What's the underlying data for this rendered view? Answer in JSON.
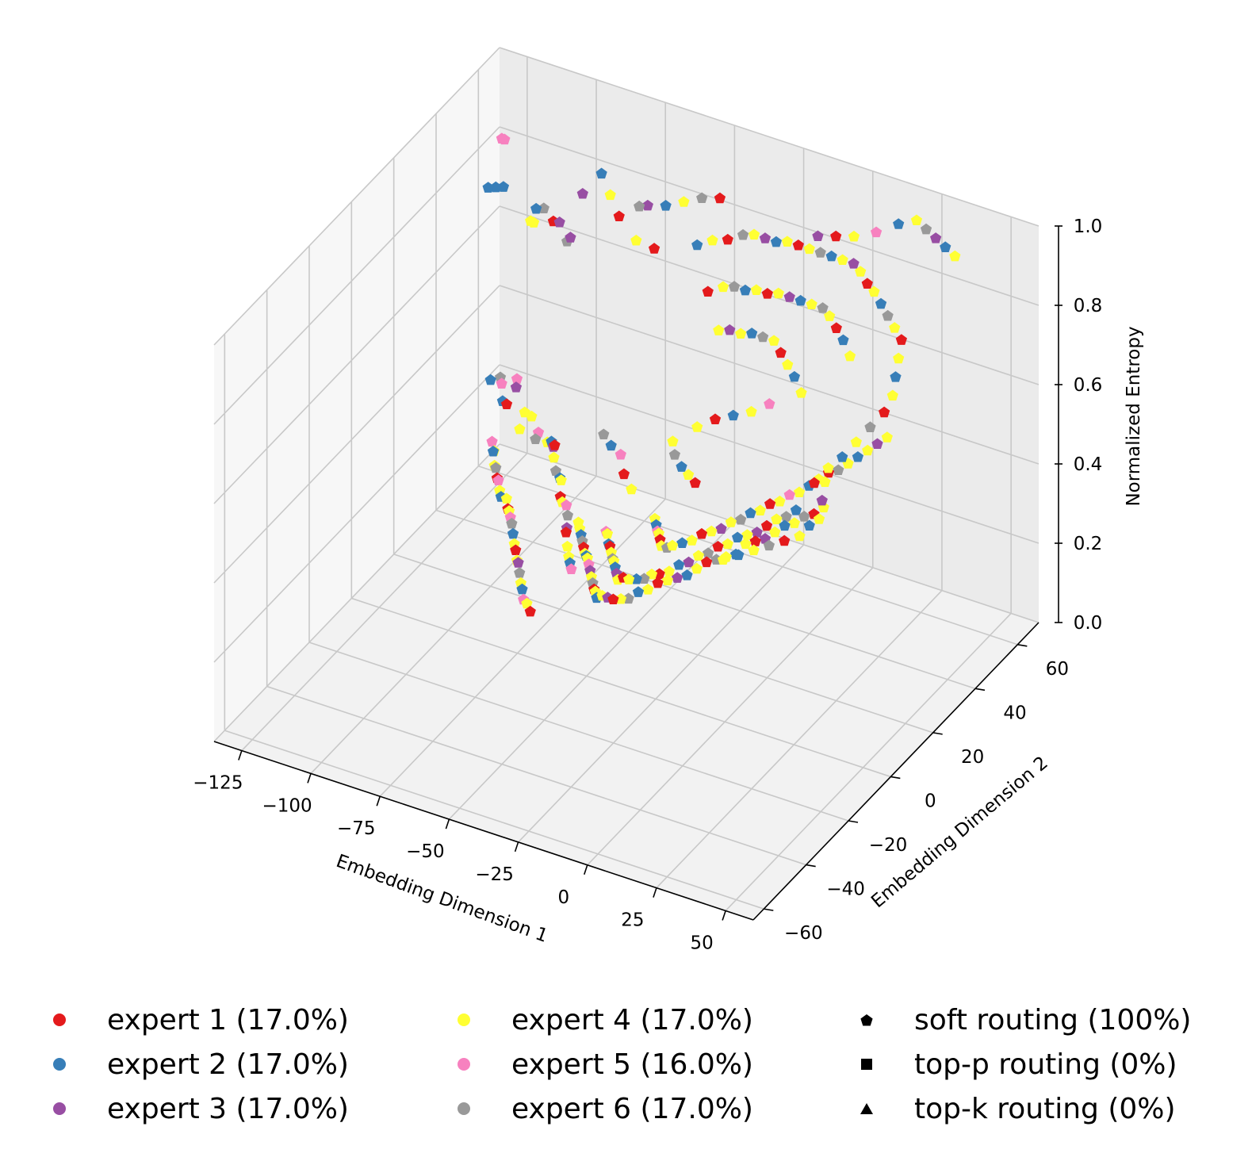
{
  "chart_data": {
    "type": "scatter",
    "projection": "3d",
    "xlabel": "Embedding Dimension 1",
    "ylabel": "Embedding Dimension 2",
    "zlabel": "Normalized Entropy",
    "xlim": [
      -135,
      60
    ],
    "ylim": [
      -65,
      70
    ],
    "zlim": [
      0,
      1
    ],
    "xticks": [
      "−125",
      "−100",
      "−75",
      "−50",
      "−25",
      "0",
      "25",
      "50"
    ],
    "yticks": [
      "−60",
      "−40",
      "−20",
      "0",
      "20",
      "40",
      "60"
    ],
    "zticks": [
      "0.0",
      "0.2",
      "0.4",
      "0.6",
      "0.8",
      "1.0"
    ],
    "grid": true,
    "legend_position": "bottom",
    "series": [
      {
        "name": "expert 1 (17.0%)",
        "color": "#e41a1c"
      },
      {
        "name": "expert 2 (17.0%)",
        "color": "#377eb8"
      },
      {
        "name": "expert 3 (17.0%)",
        "color": "#984ea3"
      },
      {
        "name": "expert 4 (17.0%)",
        "color": "#ffff33"
      },
      {
        "name": "expert 5 (16.0%)",
        "color": "#f781bf"
      },
      {
        "name": "expert 6 (17.0%)",
        "color": "#999999"
      }
    ],
    "marker_legend": [
      {
        "name": "soft routing (100%)",
        "marker": "pentagon"
      },
      {
        "name": "top-p routing (0%)",
        "marker": "square"
      },
      {
        "name": "top-k routing (0%)",
        "marker": "triangle"
      }
    ],
    "points": [
      [
        -115,
        60,
        0.66,
        3
      ],
      [
        -110,
        52,
        0.72,
        3
      ],
      [
        -120,
        45,
        0.82,
        1
      ],
      [
        -118,
        46,
        0.82,
        1
      ],
      [
        -116,
        47,
        0.82,
        1
      ],
      [
        -125,
        58,
        0.86,
        4
      ],
      [
        -124,
        58,
        0.86,
        4
      ],
      [
        -95,
        35,
        0.88,
        1
      ],
      [
        -93,
        36,
        0.88,
        5
      ],
      [
        -88,
        34,
        0.87,
        0
      ],
      [
        -85,
        33,
        0.88,
        2
      ],
      [
        -80,
        30,
        0.86,
        5
      ],
      [
        -78,
        29,
        0.88,
        2
      ],
      [
        -82,
        40,
        0.92,
        2
      ],
      [
        -79,
        45,
        0.95,
        1
      ],
      [
        -72,
        40,
        0.94,
        3
      ],
      [
        -65,
        35,
        0.93,
        0
      ],
      [
        -55,
        30,
        0.92,
        3
      ],
      [
        -60,
        38,
        0.95,
        5
      ],
      [
        -50,
        32,
        0.9,
        0
      ],
      [
        -100,
        20,
        0.52,
        1
      ],
      [
        -98,
        22,
        0.52,
        5
      ],
      [
        -96,
        20,
        0.52,
        4
      ],
      [
        -92,
        22,
        0.53,
        4
      ],
      [
        -90,
        19,
        0.53,
        2
      ],
      [
        -88,
        10,
        0.55,
        1
      ],
      [
        -85,
        8,
        0.56,
        0
      ],
      [
        -80,
        10,
        0.54,
        3
      ],
      [
        -78,
        5,
        0.53,
        3
      ],
      [
        -76,
        8,
        0.55,
        3
      ],
      [
        -72,
        6,
        0.53,
        4
      ],
      [
        -70,
        2,
        0.54,
        5
      ],
      [
        -68,
        5,
        0.52,
        3
      ],
      [
        -65,
        3,
        0.54,
        1
      ],
      [
        -62,
        0,
        0.55,
        2
      ],
      [
        -60,
        -2,
        0.57,
        0
      ],
      [
        -58,
        -5,
        0.56,
        3
      ],
      [
        -55,
        -8,
        0.55,
        5
      ],
      [
        -52,
        -10,
        0.55,
        1
      ],
      [
        -50,
        -12,
        0.56,
        3
      ],
      [
        -48,
        -15,
        0.54,
        0
      ],
      [
        -45,
        -18,
        0.55,
        3
      ],
      [
        -42,
        -20,
        0.56,
        4
      ],
      [
        -40,
        -22,
        0.55,
        5
      ],
      [
        -38,
        -25,
        0.54,
        2
      ],
      [
        -36,
        -28,
        0.55,
        0
      ],
      [
        -34,
        -30,
        0.53,
        3
      ],
      [
        -32,
        -32,
        0.52,
        3
      ],
      [
        -30,
        -34,
        0.52,
        1
      ],
      [
        -28,
        -36,
        0.52,
        4
      ],
      [
        -75,
        -12,
        0.6,
        4
      ],
      [
        -72,
        -15,
        0.6,
        3
      ],
      [
        -70,
        -18,
        0.62,
        1
      ],
      [
        -68,
        -20,
        0.6,
        3
      ],
      [
        -66,
        -22,
        0.61,
        5
      ],
      [
        -64,
        -24,
        0.6,
        0
      ],
      [
        -62,
        -26,
        0.61,
        4
      ],
      [
        -60,
        -28,
        0.6,
        3
      ],
      [
        -58,
        -30,
        0.6,
        1
      ],
      [
        -56,
        -30,
        0.6,
        3
      ],
      [
        -54,
        -32,
        0.59,
        0
      ],
      [
        -52,
        -34,
        0.6,
        3
      ],
      [
        -50,
        -36,
        0.6,
        4
      ],
      [
        -48,
        -38,
        0.6,
        5
      ],
      [
        -46,
        -40,
        0.59,
        1
      ],
      [
        -44,
        -42,
        0.58,
        3
      ],
      [
        -42,
        -44,
        0.58,
        0
      ],
      [
        -40,
        -46,
        0.57,
        3
      ],
      [
        -38,
        -48,
        0.58,
        2
      ],
      [
        -36,
        -50,
        0.57,
        5
      ],
      [
        -34,
        -52,
        0.56,
        3
      ],
      [
        -32,
        -54,
        0.56,
        1
      ],
      [
        -30,
        -56,
        0.55,
        4
      ],
      [
        -28,
        -57,
        0.55,
        3
      ],
      [
        -26,
        -58,
        0.54,
        0
      ],
      [
        -30,
        -30,
        0.6,
        3
      ],
      [
        -28,
        -32,
        0.6,
        3
      ],
      [
        -26,
        -34,
        0.6,
        1
      ],
      [
        -24,
        -36,
        0.6,
        5
      ],
      [
        -22,
        -38,
        0.6,
        0
      ],
      [
        -20,
        -40,
        0.6,
        3
      ],
      [
        -18,
        -42,
        0.61,
        1
      ],
      [
        -16,
        -44,
        0.62,
        3
      ],
      [
        -14,
        -46,
        0.62,
        4
      ],
      [
        -12,
        -48,
        0.62,
        2
      ],
      [
        -10,
        -50,
        0.62,
        3
      ],
      [
        -8,
        -52,
        0.62,
        5
      ],
      [
        -6,
        -54,
        0.62,
        0
      ],
      [
        -4,
        -56,
        0.63,
        3
      ],
      [
        -2,
        -58,
        0.63,
        1
      ],
      [
        0,
        -58,
        0.64,
        3
      ],
      [
        2,
        -58,
        0.64,
        2
      ],
      [
        4,
        -58,
        0.64,
        0
      ],
      [
        6,
        -57,
        0.64,
        3
      ],
      [
        8,
        -56,
        0.64,
        5
      ],
      [
        10,
        -54,
        0.65,
        1
      ],
      [
        12,
        -52,
        0.65,
        3
      ],
      [
        14,
        -50,
        0.66,
        0
      ],
      [
        16,
        -48,
        0.66,
        3
      ],
      [
        18,
        -46,
        0.66,
        2
      ],
      [
        20,
        -44,
        0.66,
        1
      ],
      [
        22,
        -42,
        0.67,
        3
      ],
      [
        24,
        -40,
        0.68,
        0
      ],
      [
        26,
        -38,
        0.68,
        5
      ],
      [
        28,
        -36,
        0.68,
        3
      ],
      [
        30,
        -34,
        0.68,
        1
      ],
      [
        32,
        -32,
        0.7,
        3
      ],
      [
        34,
        -30,
        0.7,
        0
      ],
      [
        36,
        -28,
        0.7,
        2
      ],
      [
        38,
        -26,
        0.71,
        3
      ],
      [
        40,
        -24,
        0.72,
        1
      ],
      [
        42,
        -22,
        0.72,
        3
      ],
      [
        44,
        -20,
        0.73,
        5
      ],
      [
        46,
        -18,
        0.73,
        0
      ],
      [
        48,
        -16,
        0.74,
        3
      ],
      [
        -20,
        -30,
        0.6,
        4
      ],
      [
        -18,
        -32,
        0.61,
        3
      ],
      [
        -16,
        -34,
        0.6,
        1
      ],
      [
        -14,
        -36,
        0.61,
        0
      ],
      [
        -12,
        -38,
        0.61,
        3
      ],
      [
        -10,
        -40,
        0.61,
        5
      ],
      [
        -8,
        -42,
        0.62,
        3
      ],
      [
        -6,
        -44,
        0.62,
        1
      ],
      [
        -4,
        -46,
        0.62,
        2
      ],
      [
        -2,
        -48,
        0.62,
        3
      ],
      [
        0,
        -48,
        0.63,
        0
      ],
      [
        2,
        -48,
        0.63,
        3
      ],
      [
        4,
        -47,
        0.63,
        1
      ],
      [
        6,
        -46,
        0.63,
        5
      ],
      [
        8,
        -45,
        0.64,
        3
      ],
      [
        10,
        -44,
        0.64,
        0
      ],
      [
        12,
        -42,
        0.64,
        3
      ],
      [
        14,
        -40,
        0.65,
        1
      ],
      [
        16,
        -38,
        0.65,
        2
      ],
      [
        18,
        -36,
        0.66,
        3
      ],
      [
        20,
        -34,
        0.66,
        5
      ],
      [
        22,
        -32,
        0.67,
        0
      ],
      [
        24,
        -30,
        0.67,
        3
      ],
      [
        26,
        -28,
        0.68,
        1
      ],
      [
        28,
        -26,
        0.68,
        3
      ],
      [
        30,
        -24,
        0.68,
        2
      ],
      [
        32,
        -22,
        0.69,
        0
      ],
      [
        34,
        -20,
        0.7,
        3
      ],
      [
        36,
        -18,
        0.7,
        5
      ],
      [
        38,
        -16,
        0.71,
        1
      ],
      [
        -10,
        -20,
        0.6,
        3
      ],
      [
        -8,
        -22,
        0.6,
        1
      ],
      [
        -6,
        -24,
        0.6,
        4
      ],
      [
        -4,
        -26,
        0.61,
        3
      ],
      [
        -2,
        -28,
        0.61,
        0
      ],
      [
        0,
        -30,
        0.61,
        3
      ],
      [
        2,
        -30,
        0.61,
        5
      ],
      [
        4,
        -30,
        0.62,
        3
      ],
      [
        6,
        -28,
        0.62,
        1
      ],
      [
        8,
        -26,
        0.62,
        3
      ],
      [
        10,
        -24,
        0.63,
        0
      ],
      [
        12,
        -22,
        0.63,
        3
      ],
      [
        14,
        -20,
        0.63,
        2
      ],
      [
        16,
        -18,
        0.64,
        3
      ],
      [
        18,
        -16,
        0.64,
        5
      ],
      [
        20,
        -14,
        0.65,
        1
      ],
      [
        22,
        -12,
        0.65,
        3
      ],
      [
        24,
        -10,
        0.66,
        0
      ],
      [
        26,
        -8,
        0.66,
        3
      ],
      [
        28,
        -6,
        0.67,
        4
      ],
      [
        30,
        -4,
        0.67,
        3
      ],
      [
        32,
        -2,
        0.68,
        1
      ],
      [
        34,
        0,
        0.69,
        3
      ],
      [
        36,
        2,
        0.7,
        0
      ],
      [
        38,
        4,
        0.7,
        5
      ],
      [
        40,
        6,
        0.71,
        3
      ],
      [
        42,
        8,
        0.72,
        1
      ],
      [
        44,
        10,
        0.73,
        3
      ],
      [
        46,
        12,
        0.74,
        2
      ],
      [
        48,
        14,
        0.75,
        3
      ],
      [
        40,
        -10,
        0.75,
        0
      ],
      [
        42,
        -6,
        0.77,
        3
      ],
      [
        44,
        -2,
        0.78,
        1
      ],
      [
        46,
        2,
        0.8,
        3
      ],
      [
        48,
        6,
        0.82,
        5
      ],
      [
        50,
        10,
        0.84,
        0
      ],
      [
        50,
        14,
        0.86,
        3
      ],
      [
        48,
        18,
        0.88,
        1
      ],
      [
        46,
        22,
        0.9,
        3
      ],
      [
        44,
        26,
        0.92,
        0
      ],
      [
        40,
        28,
        0.93,
        3
      ],
      [
        36,
        30,
        0.94,
        5
      ],
      [
        32,
        32,
        0.95,
        1
      ],
      [
        28,
        34,
        0.96,
        3
      ],
      [
        24,
        36,
        0.96,
        0
      ],
      [
        20,
        38,
        0.97,
        3
      ],
      [
        16,
        40,
        0.97,
        2
      ],
      [
        12,
        40,
        0.97,
        3
      ],
      [
        8,
        40,
        0.97,
        1
      ],
      [
        4,
        40,
        0.97,
        5
      ],
      [
        0,
        40,
        0.97,
        3
      ],
      [
        -4,
        40,
        0.97,
        0
      ],
      [
        -8,
        40,
        0.97,
        3
      ],
      [
        -12,
        40,
        0.96,
        1
      ],
      [
        -16,
        40,
        0.96,
        2
      ],
      [
        -20,
        40,
        0.96,
        3
      ],
      [
        -24,
        40,
        0.95,
        5
      ],
      [
        -28,
        38,
        0.94,
        0
      ],
      [
        -32,
        36,
        0.94,
        3
      ],
      [
        -36,
        34,
        0.93,
        1
      ],
      [
        30,
        20,
        0.88,
        3
      ],
      [
        26,
        22,
        0.9,
        1
      ],
      [
        22,
        24,
        0.91,
        0
      ],
      [
        18,
        26,
        0.92,
        3
      ],
      [
        14,
        28,
        0.92,
        5
      ],
      [
        10,
        28,
        0.92,
        3
      ],
      [
        6,
        28,
        0.92,
        1
      ],
      [
        2,
        28,
        0.92,
        2
      ],
      [
        -2,
        28,
        0.92,
        3
      ],
      [
        -6,
        28,
        0.91,
        0
      ],
      [
        -10,
        28,
        0.91,
        3
      ],
      [
        -14,
        28,
        0.9,
        1
      ],
      [
        -18,
        28,
        0.9,
        5
      ],
      [
        -22,
        28,
        0.89,
        3
      ],
      [
        -26,
        26,
        0.88,
        0
      ],
      [
        20,
        10,
        0.82,
        3
      ],
      [
        16,
        12,
        0.84,
        1
      ],
      [
        12,
        14,
        0.85,
        3
      ],
      [
        8,
        16,
        0.86,
        0
      ],
      [
        4,
        18,
        0.87,
        3
      ],
      [
        0,
        18,
        0.87,
        5
      ],
      [
        -4,
        18,
        0.87,
        1
      ],
      [
        -8,
        18,
        0.86,
        3
      ],
      [
        -12,
        18,
        0.86,
        2
      ],
      [
        -16,
        18,
        0.85,
        3
      ],
      [
        45,
        50,
        1.0,
        3
      ],
      [
        40,
        52,
        1.0,
        1
      ],
      [
        35,
        54,
        1.0,
        2
      ],
      [
        30,
        56,
        1.0,
        5
      ],
      [
        25,
        58,
        1.0,
        3
      ],
      [
        20,
        56,
        0.99,
        1
      ],
      [
        15,
        52,
        0.98,
        4
      ],
      [
        10,
        48,
        0.98,
        3
      ],
      [
        5,
        46,
        0.98,
        0
      ],
      [
        0,
        44,
        0.98,
        2
      ],
      [
        -40,
        50,
        0.95,
        0
      ],
      [
        -45,
        48,
        0.95,
        5
      ],
      [
        -50,
        46,
        0.94,
        3
      ],
      [
        -55,
        44,
        0.93,
        1
      ],
      [
        -60,
        42,
        0.93,
        2
      ],
      [
        -30,
        -10,
        0.66,
        4
      ],
      [
        -25,
        -15,
        0.65,
        0
      ],
      [
        -20,
        -18,
        0.64,
        3
      ],
      [
        -35,
        -8,
        0.66,
        1
      ],
      [
        -40,
        -5,
        0.66,
        5
      ],
      [
        -10,
        0,
        0.72,
        3
      ],
      [
        -5,
        2,
        0.74,
        0
      ],
      [
        0,
        4,
        0.75,
        1
      ],
      [
        5,
        6,
        0.76,
        3
      ],
      [
        10,
        8,
        0.78,
        4
      ],
      [
        -15,
        -5,
        0.7,
        3
      ],
      [
        -12,
        -8,
        0.69,
        5
      ],
      [
        -8,
        -10,
        0.68,
        1
      ],
      [
        -4,
        -12,
        0.68,
        3
      ],
      [
        0,
        -14,
        0.68,
        0
      ],
      [
        30,
        -40,
        0.7,
        3
      ],
      [
        34,
        -38,
        0.71,
        1
      ],
      [
        38,
        -36,
        0.72,
        3
      ],
      [
        42,
        -34,
        0.73,
        5
      ],
      [
        46,
        -32,
        0.74,
        0
      ],
      [
        50,
        -30,
        0.75,
        3
      ],
      [
        52,
        -28,
        0.77,
        1
      ],
      [
        54,
        -26,
        0.78,
        3
      ],
      [
        52,
        -22,
        0.8,
        2
      ],
      [
        50,
        -18,
        0.82,
        3
      ]
    ]
  }
}
